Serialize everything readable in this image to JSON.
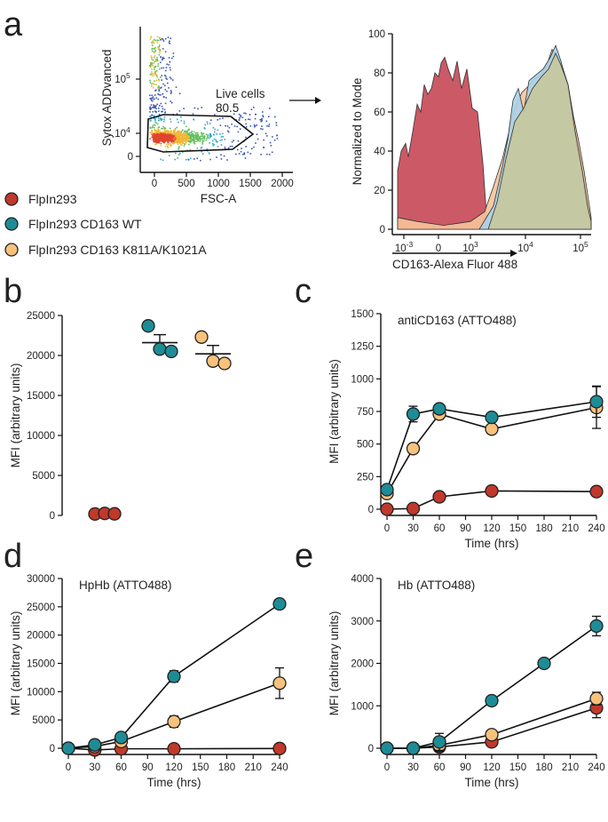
{
  "colors": {
    "flpin": "#c0392b",
    "wt": "#1e8c96",
    "mut": "#f8c27c",
    "hist_red": "#c9505e",
    "hist_blue": "#a9d3ea",
    "hist_orange": "#f7c39a",
    "hist_olive": "#c7c79b",
    "gate": "#111111"
  },
  "panel_letters": [
    "a",
    "b",
    "c",
    "d",
    "e"
  ],
  "legend": {
    "items": [
      {
        "label": "FlpIn293",
        "color_key": "flpin"
      },
      {
        "label": "FlpIn293 CD163 WT",
        "color_key": "wt"
      },
      {
        "label": "FlpIn293 CD163 K811A/K1021A",
        "color_key": "mut"
      }
    ]
  },
  "chart_data": [
    {
      "id": "a_scatter",
      "type": "scatter",
      "title": "",
      "xlabel": "FSC-A",
      "ylabel": "Sytox ADDvanced",
      "x_ticks": [
        "0",
        "500",
        "1000",
        "1500",
        "2000"
      ],
      "y_ticks": [
        "0",
        "10^4",
        "10^5"
      ],
      "gate": {
        "name": "Live cells",
        "value": "80.5"
      }
    },
    {
      "id": "a_histogram",
      "type": "area",
      "xlabel": "CD163-Alexa Fluor 488",
      "ylabel": "Normalized to Mode",
      "ylim": [
        0,
        100
      ],
      "y_ticks": [
        "0",
        "20",
        "40",
        "60",
        "80",
        "100"
      ],
      "x_ticks": [
        "10^-3",
        "0",
        "10^3",
        "10^4",
        "10^5"
      ],
      "series": [
        {
          "name": "FlpIn293",
          "color_key": "hist_red",
          "peak": 88
        },
        {
          "name": "FlpIn293 CD163 WT",
          "color_key": "hist_blue",
          "peak": 94
        },
        {
          "name": "FlpIn293 CD163 K811A/K1021A",
          "color_key": "hist_orange",
          "peak": 92
        }
      ]
    },
    {
      "id": "b",
      "type": "scatter",
      "ylabel": "MFI (arbitrary units)",
      "ylim": [
        0,
        25000
      ],
      "y_ticks": [
        0,
        5000,
        10000,
        15000,
        20000,
        25000
      ],
      "groups": [
        {
          "name": "FlpIn293",
          "color_key": "flpin",
          "points": [
            180,
            250,
            200
          ],
          "mean": 210,
          "sem": 20
        },
        {
          "name": "FlpIn293 CD163 WT",
          "color_key": "wt",
          "points": [
            23700,
            20800,
            20500
          ],
          "mean": 21600,
          "sem": 1000
        },
        {
          "name": "FlpIn293 CD163 K811A/K1021A",
          "color_key": "mut",
          "points": [
            22300,
            19300,
            19000
          ],
          "mean": 20200,
          "sem": 1050
        }
      ]
    },
    {
      "id": "c",
      "type": "line",
      "title": "antiCD163 (ATTO488)",
      "xlabel": "Time (hrs)",
      "ylabel": "MFI (arbitrary units)",
      "x": [
        0,
        30,
        60,
        120,
        240
      ],
      "xlim": [
        0,
        240
      ],
      "ylim": [
        0,
        1500
      ],
      "x_ticks": [
        0,
        30,
        60,
        90,
        120,
        150,
        180,
        210,
        240
      ],
      "y_ticks": [
        0,
        250,
        500,
        750,
        1000,
        1250,
        1500
      ],
      "series": [
        {
          "name": "FlpIn293",
          "color_key": "flpin",
          "values": [
            0,
            5,
            95,
            140,
            135
          ],
          "err": [
            30,
            30,
            15,
            20,
            30
          ]
        },
        {
          "name": "FlpIn293 CD163 K811A/K1021A",
          "color_key": "mut",
          "values": [
            120,
            465,
            730,
            615,
            780
          ],
          "err": [
            30,
            25,
            40,
            25,
            160
          ]
        },
        {
          "name": "FlpIn293 CD163 WT",
          "color_key": "wt",
          "values": [
            150,
            730,
            770,
            705,
            825
          ],
          "err": [
            30,
            60,
            30,
            25,
            120
          ]
        }
      ]
    },
    {
      "id": "d",
      "type": "line",
      "title": "HpHb (ATTO488)",
      "xlabel": "Time (hrs)",
      "ylabel": "MFI (arbitrary units)",
      "x": [
        0,
        30,
        60,
        120,
        240
      ],
      "xlim": [
        0,
        240
      ],
      "ylim": [
        0,
        30000
      ],
      "x_ticks": [
        0,
        30,
        60,
        90,
        120,
        150,
        180,
        210,
        240
      ],
      "y_ticks": [
        0,
        5000,
        10000,
        15000,
        20000,
        25000,
        30000
      ],
      "series": [
        {
          "name": "FlpIn293",
          "color_key": "flpin",
          "values": [
            0,
            -300,
            -100,
            -100,
            -50
          ],
          "err": [
            200,
            200,
            200,
            200,
            200
          ]
        },
        {
          "name": "FlpIn293 CD163 K811A/K1021A",
          "color_key": "mut",
          "values": [
            0,
            300,
            1200,
            4700,
            11500
          ],
          "err": [
            300,
            300,
            400,
            1000,
            2700
          ]
        },
        {
          "name": "FlpIn293 CD163 WT",
          "color_key": "wt",
          "values": [
            0,
            600,
            1900,
            12700,
            25500
          ],
          "err": [
            300,
            300,
            300,
            1000,
            400
          ]
        }
      ]
    },
    {
      "id": "e",
      "type": "line",
      "title": "Hb (ATTO488)",
      "xlabel": "Time (hrs)",
      "ylabel": "MFI (arbitrary units)",
      "x": [
        0,
        30,
        60,
        120,
        180,
        240
      ],
      "xlim": [
        0,
        240
      ],
      "ylim": [
        0,
        4000
      ],
      "x_ticks": [
        0,
        30,
        60,
        90,
        120,
        150,
        180,
        210,
        240
      ],
      "y_ticks": [
        0,
        1000,
        2000,
        3000,
        4000
      ],
      "series": [
        {
          "name": "FlpIn293",
          "color_key": "flpin",
          "values": [
            0,
            0,
            30,
            150,
            null,
            950
          ],
          "err": [
            40,
            40,
            40,
            60,
            null,
            230
          ]
        },
        {
          "name": "FlpIn293 CD163 K811A/K1021A",
          "color_key": "mut",
          "values": [
            0,
            0,
            70,
            320,
            null,
            1170
          ],
          "err": [
            40,
            100,
            150,
            60,
            null,
            150
          ]
        },
        {
          "name": "FlpIn293 CD163 WT",
          "color_key": "wt",
          "values": [
            0,
            0,
            150,
            1120,
            2000,
            2880
          ],
          "err": [
            40,
            100,
            200,
            60,
            50,
            230
          ]
        }
      ]
    }
  ]
}
